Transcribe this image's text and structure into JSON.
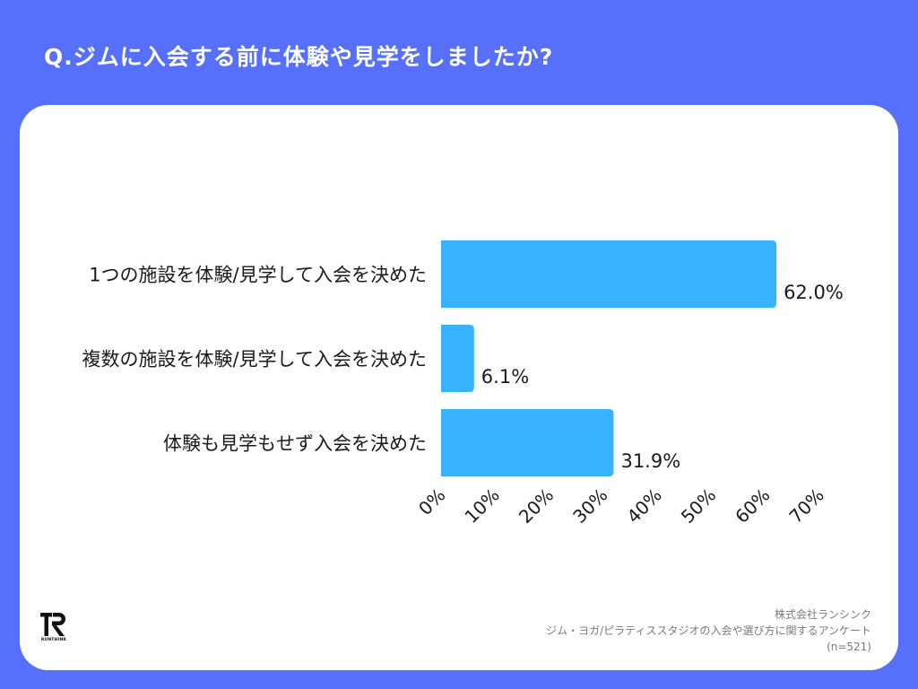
{
  "title": "Q.ジムに入会する前に体験や見学をしましたか?",
  "chart_data": {
    "type": "bar",
    "orientation": "horizontal",
    "categories": [
      "1つの施設を体験/見学して入会を決めた",
      "複数の施設を体験/見学して入会を決めた",
      "体験も見学もせず入会を決めた"
    ],
    "values": [
      62.0,
      6.1,
      31.9
    ],
    "value_labels": [
      "62.0%",
      "6.1%",
      "31.9%"
    ],
    "x_ticks": [
      "0%",
      "10%",
      "20%",
      "30%",
      "40%",
      "50%",
      "60%",
      "70%"
    ],
    "xlim": [
      0,
      70
    ],
    "bar_color": "#38b2fc",
    "grid": false
  },
  "footer": {
    "company": "株式会社ランシンク",
    "survey": "ジム・ヨガ/ピラティススタジオの入会や選び方に関するアンケート",
    "sample": "(n=521)"
  },
  "logo": {
    "text": "RUNTHINK",
    "icon": "runthink-logo"
  },
  "colors": {
    "background": "#5670fb",
    "card": "#ffffff",
    "bar": "#38b2fc"
  }
}
